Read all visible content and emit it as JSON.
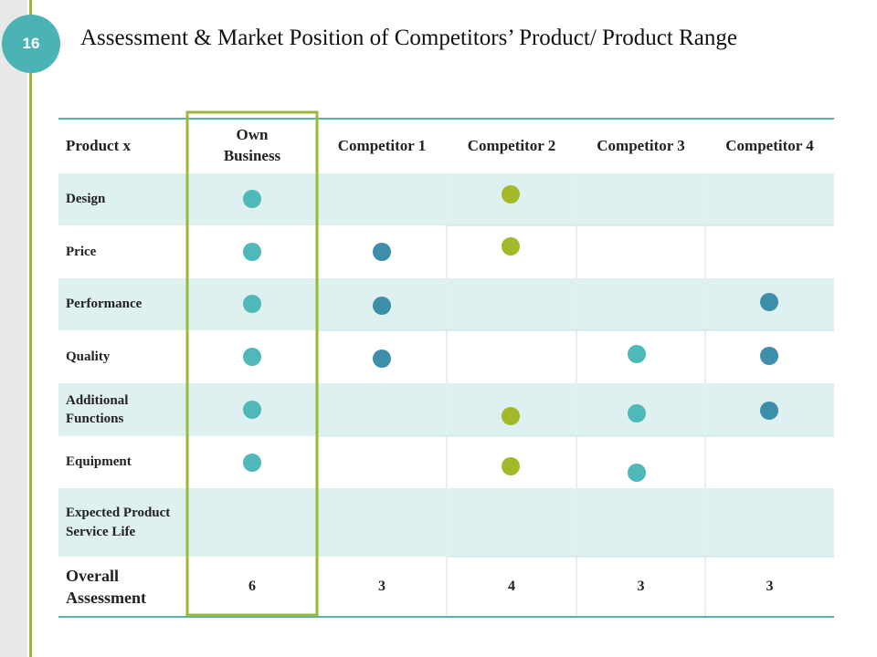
{
  "slide_number": "16",
  "title": "Assessment & Market Position of Competitors’ Product/ Product Range",
  "table": {
    "header": [
      "Product x",
      "Own Business",
      "Competitor 1",
      "Competitor 2",
      "Competitor 3",
      "Competitor 4"
    ],
    "row_labels": [
      "Design",
      "Price",
      "Performance",
      "Quality",
      "Additional Functions",
      "Equipment",
      "Expected Product Service Life"
    ],
    "overall": {
      "label": "Overall Assessment",
      "values": [
        6,
        3,
        4,
        3,
        3
      ]
    }
  }
}
